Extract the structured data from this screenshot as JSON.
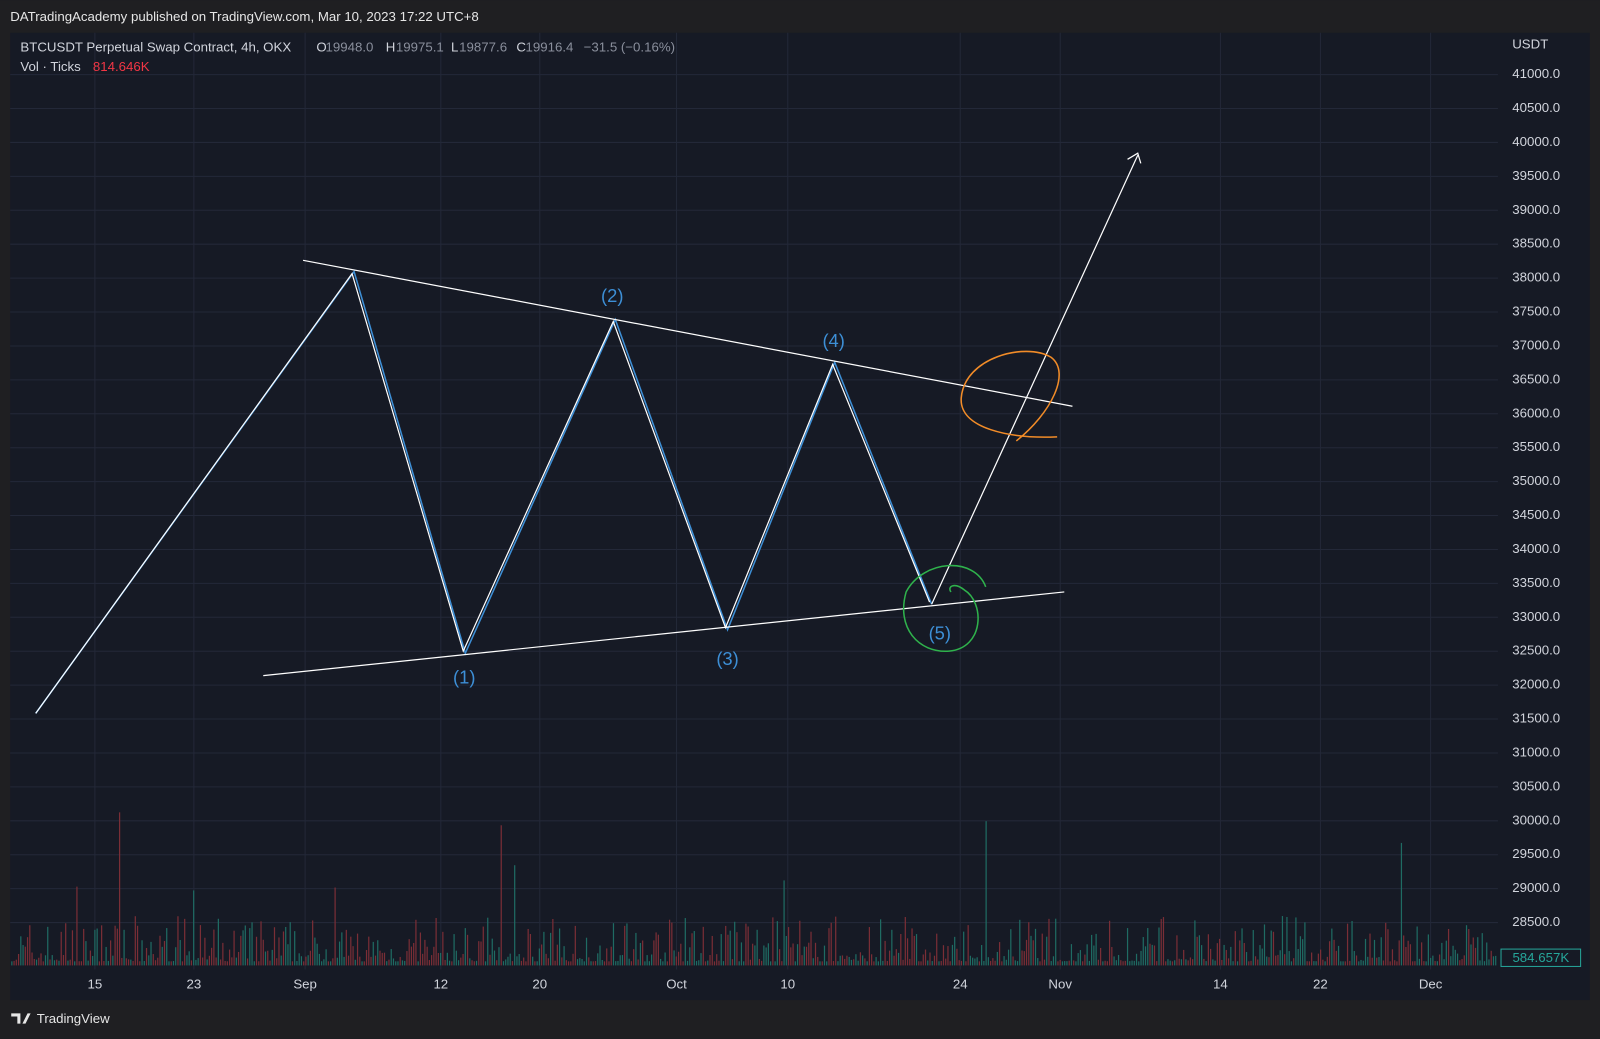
{
  "header": {
    "publisher": "DATradingAcademy published on TradingView.com, Mar 10, 2023 17:22 UTC+8"
  },
  "legend": {
    "symbol": "BTCUSDT Perpetual Swap Contract, 4h, OKX",
    "open_label": "O",
    "open": "19948.0",
    "high_label": "H",
    "high": "19975.1",
    "low_label": "L",
    "low": "19877.6",
    "close_label": "C",
    "close": "19916.4",
    "change": "−31.5 (−0.16%)",
    "volume_label": "Vol · Ticks",
    "volume": "814.646K"
  },
  "price_axis": {
    "unit": "USDT",
    "labels": [
      "41000.0",
      "40500.0",
      "40000.0",
      "39500.0",
      "39000.0",
      "38500.0",
      "38000.0",
      "37500.0",
      "37000.0",
      "36500.0",
      "36000.0",
      "35500.0",
      "35000.0",
      "34500.0",
      "34000.0",
      "33500.0",
      "33000.0",
      "32500.0",
      "32000.0",
      "31500.0",
      "31000.0",
      "30500.0",
      "30000.0",
      "29500.0",
      "29000.0",
      "28500.0"
    ],
    "volume_badge": "584.657K"
  },
  "time_axis": {
    "labels": [
      "15",
      "23",
      "Sep",
      "12",
      "20",
      "Oct",
      "10",
      "24",
      "Nov",
      "14",
      "22",
      "Dec"
    ]
  },
  "waves": [
    "(1)",
    "(2)",
    "(3)",
    "(4)",
    "(5)"
  ],
  "footer": {
    "brand": "TradingView"
  }
}
